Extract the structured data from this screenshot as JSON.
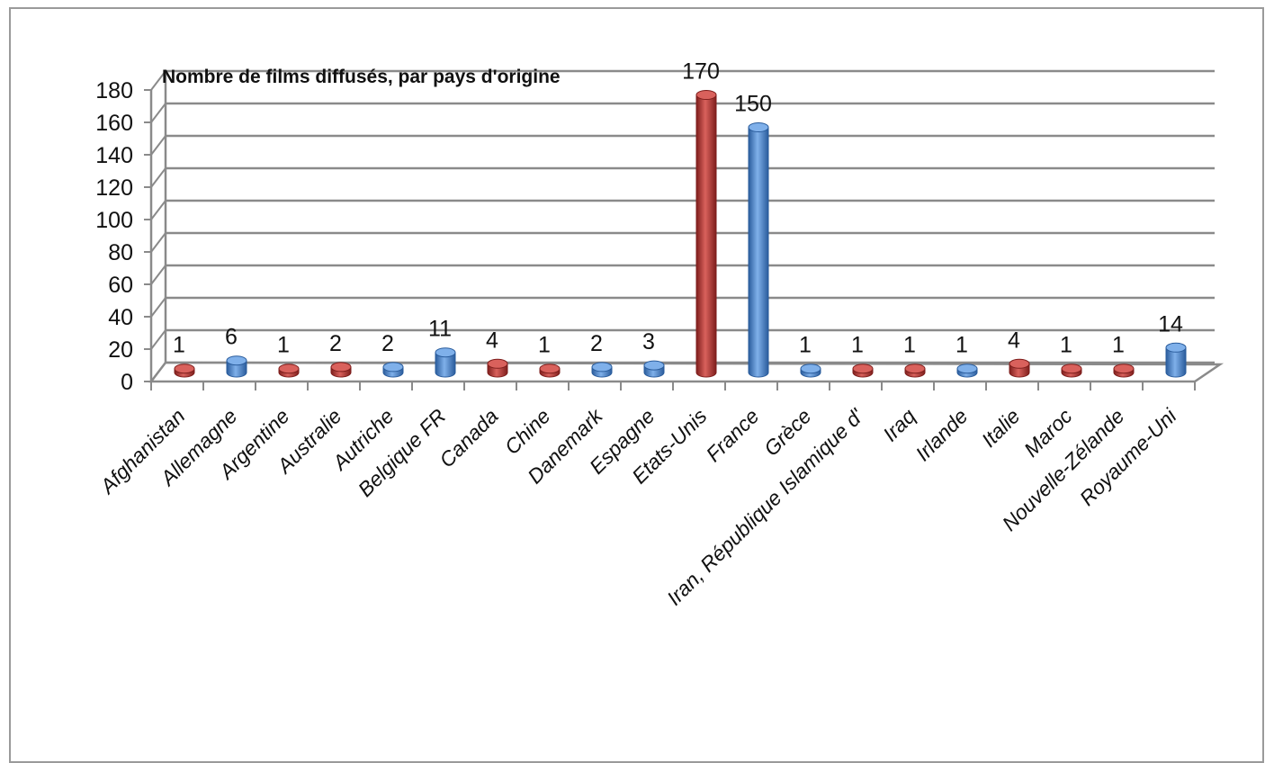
{
  "chart_data": {
    "type": "bar",
    "title": "Nombre de films diffusés, par pays d'origine",
    "xlabel": "",
    "ylabel": "",
    "ylim": [
      0,
      180
    ],
    "yticks": [
      0,
      20,
      40,
      60,
      80,
      100,
      120,
      140,
      160,
      180
    ],
    "grid": true,
    "legend": "none",
    "colors": {
      "red": "#b3312f",
      "blue": "#3f7fcf"
    },
    "categories": [
      "Afghanistan",
      "Allemagne",
      "Argentine",
      "Australie",
      "Autriche",
      "Belgique FR",
      "Canada",
      "Chine",
      "Danemark",
      "Espagne",
      "Etats-Unis",
      "France",
      "Grèce",
      "Iran, République Islamique d'",
      "Iraq",
      "Irlande",
      "Italie",
      "Maroc",
      "Nouvelle-Zélande",
      "Royaume-Uni"
    ],
    "values": [
      1,
      6,
      1,
      2,
      2,
      11,
      4,
      1,
      2,
      3,
      170,
      150,
      1,
      1,
      1,
      1,
      4,
      1,
      1,
      14
    ],
    "bar_colors": [
      "red",
      "blue",
      "red",
      "red",
      "blue",
      "blue",
      "red",
      "red",
      "blue",
      "blue",
      "red",
      "blue",
      "blue",
      "red",
      "red",
      "blue",
      "red",
      "red",
      "red",
      "blue"
    ]
  }
}
